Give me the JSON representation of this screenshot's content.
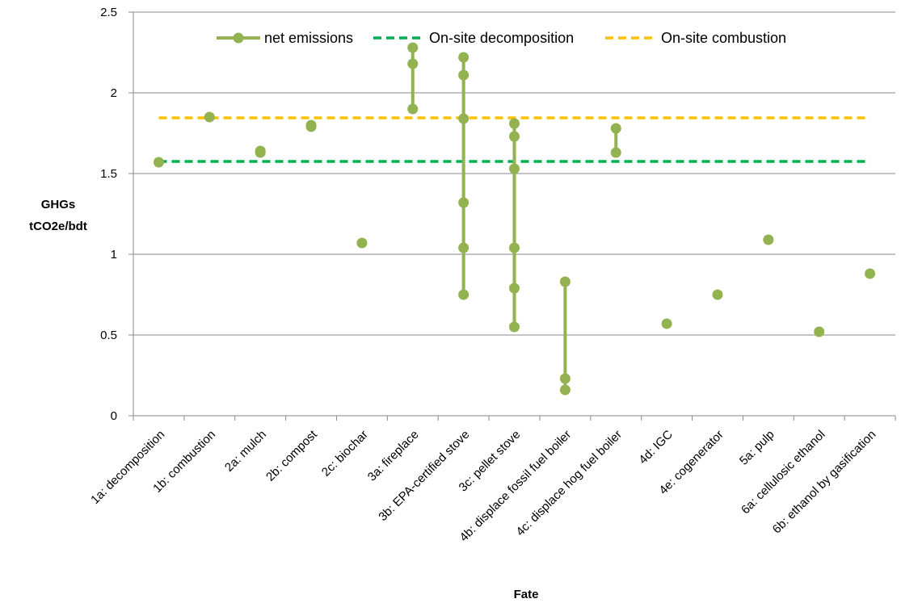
{
  "chart_data": {
    "type": "scatter",
    "ylabel": [
      "GHGs",
      "tCO2e/bdt"
    ],
    "xlabel": "Fate",
    "ylim": [
      0,
      2.5
    ],
    "y_ticks": [
      "0",
      "0.5",
      "1",
      "1.5",
      "2",
      "2.5"
    ],
    "grid": "horizontal",
    "legend_position": "top",
    "categories": [
      "1a: decomposition",
      "1b: combustion",
      "2a: mulch",
      "2b: compost",
      "2c: biochar",
      "3a: fireplace",
      "3b: EPA-certified stove",
      "3c: pellet stove",
      "4b: displace fossil fuel boiler",
      "4c: displace hog fuel boiler",
      "4d: IGC",
      "4e: cogenerator",
      "5a: pulp",
      "6a: cellulosic ethanol",
      "6b: ethanol by gasification"
    ],
    "series": [
      {
        "name": "net emissions",
        "color": "#92b34f",
        "style": "points-with-range-lines",
        "values": [
          [
            1.57
          ],
          [
            1.85
          ],
          [
            1.63,
            1.64
          ],
          [
            1.79,
            1.8
          ],
          [
            1.07
          ],
          [
            1.9,
            2.18,
            2.28
          ],
          [
            0.75,
            1.04,
            1.32,
            1.84,
            2.11,
            2.22
          ],
          [
            0.55,
            0.79,
            1.04,
            1.53,
            1.73,
            1.81
          ],
          [
            0.16,
            0.23,
            0.83
          ],
          [
            1.63,
            1.78
          ],
          [
            0.57
          ],
          [
            0.75
          ],
          [
            1.09
          ],
          [
            0.52
          ],
          [
            0.88
          ]
        ]
      },
      {
        "name": "On-site decomposition",
        "color": "#00b050",
        "style": "dashed-reference",
        "value": 1.575
      },
      {
        "name": "On-site combustion",
        "color": "#ffc000",
        "style": "dashed-reference",
        "value": 1.845
      }
    ]
  }
}
